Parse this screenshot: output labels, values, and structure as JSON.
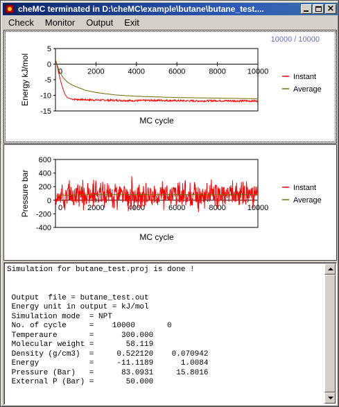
{
  "window": {
    "title": "cheMC  terminated in    D:\\cheMC\\example\\butane\\butane_test...."
  },
  "menu": {
    "items": [
      "Check",
      "Monitor",
      "Output",
      "Exit"
    ]
  },
  "progress_text": "10000 /  10000",
  "chart_data": [
    {
      "type": "line",
      "xlabel": "MC cycle",
      "ylabel": "Energy kJ/mol",
      "xlim": [
        0,
        10000
      ],
      "ylim": [
        -15,
        5
      ],
      "xticks": [
        "0",
        "2000",
        "4000",
        "6000",
        "8000",
        "10000"
      ],
      "yticks": [
        "5",
        "0",
        "-5",
        "-10",
        "-15"
      ],
      "legend_position": "right",
      "series": [
        {
          "name": "Instant",
          "color": "#ff0000",
          "x": [
            0,
            100,
            200,
            300,
            400,
            500,
            600,
            800,
            1000,
            1500,
            2000,
            3000,
            4000,
            5000,
            6000,
            7000,
            8000,
            9000,
            10000
          ],
          "y": [
            1.5,
            -1,
            -4,
            -6.5,
            -8.5,
            -10,
            -10.8,
            -11.2,
            -11.3,
            -11.4,
            -11.5,
            -11.6,
            -11.7,
            -11.6,
            -11.7,
            -11.8,
            -11.7,
            -11.8,
            -11.8
          ],
          "noise": 0.6
        },
        {
          "name": "Average",
          "color": "#6b6b00",
          "x": [
            0,
            200,
            400,
            600,
            800,
            1000,
            1500,
            2000,
            3000,
            4000,
            5000,
            6000,
            7000,
            8000,
            9000,
            10000
          ],
          "y": [
            1.5,
            -2.5,
            -4.5,
            -5.8,
            -6.6,
            -7.2,
            -8.4,
            -9.1,
            -9.9,
            -10.3,
            -10.5,
            -10.7,
            -10.8,
            -10.9,
            -11.0,
            -11.1
          ]
        }
      ]
    },
    {
      "type": "line",
      "xlabel": "MC cycle",
      "ylabel": "Pressure bar",
      "xlim": [
        0,
        10000
      ],
      "ylim": [
        -400,
        600
      ],
      "xticks": [
        "0",
        "2000",
        "4000",
        "6000",
        "8000",
        "10000"
      ],
      "yticks": [
        "600",
        "400",
        "200",
        "0",
        "-200",
        "-400"
      ],
      "legend_position": "right",
      "series": [
        {
          "name": "Instant",
          "color": "#ff0000",
          "mean": 83,
          "spread": 170,
          "points": 600
        },
        {
          "name": "Average",
          "color": "#6b6b00",
          "x": [
            0,
            500,
            1000,
            2000,
            3000,
            4000,
            5000,
            6000,
            7000,
            8000,
            9000,
            10000
          ],
          "y": [
            60,
            75,
            80,
            82,
            83,
            83,
            83,
            83,
            83,
            83,
            83,
            83
          ]
        }
      ]
    }
  ],
  "output_text": {
    "lines": [
      "Simulation for butane_test.proj is done !",
      "",
      "",
      " Output  file = butane_test.out",
      " Energy unit in output = kJ/mol",
      " Simulation mode  = NPT",
      " No. of cycle     =    10000       0",
      " Temperaure       =      300.000",
      " Molecular weight =       58.119",
      " Density (g/cm3)  =     0.522120    0.070942",
      " Energy           =     -11.1189      1.0084",
      " Pressure (Bar)   =      83.0931     15.8016",
      " External P (Bar) =       50.000"
    ]
  }
}
